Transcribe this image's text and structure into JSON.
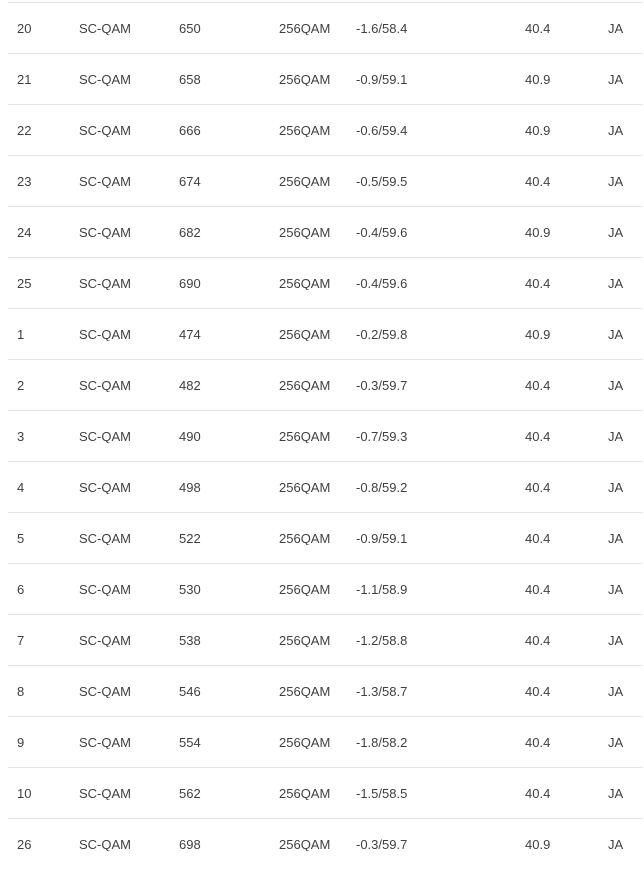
{
  "colors": {
    "text": "#3f3f3f",
    "row_divider": "#e4e4e4",
    "background": "#ffffff"
  },
  "table": {
    "kind": "downstream-channel-status-table",
    "columns": [
      "channel_id",
      "channel_type",
      "frequency",
      "modulation",
      "power_snr",
      "mer",
      "locked"
    ],
    "rows": [
      {
        "channel_id": "20",
        "channel_type": "SC-QAM",
        "frequency": "650",
        "modulation": "256QAM",
        "power_snr": "-1.6/58.4",
        "mer": "40.4",
        "locked": "JA"
      },
      {
        "channel_id": "21",
        "channel_type": "SC-QAM",
        "frequency": "658",
        "modulation": "256QAM",
        "power_snr": "-0.9/59.1",
        "mer": "40.9",
        "locked": "JA"
      },
      {
        "channel_id": "22",
        "channel_type": "SC-QAM",
        "frequency": "666",
        "modulation": "256QAM",
        "power_snr": "-0.6/59.4",
        "mer": "40.9",
        "locked": "JA"
      },
      {
        "channel_id": "23",
        "channel_type": "SC-QAM",
        "frequency": "674",
        "modulation": "256QAM",
        "power_snr": "-0.5/59.5",
        "mer": "40.4",
        "locked": "JA"
      },
      {
        "channel_id": "24",
        "channel_type": "SC-QAM",
        "frequency": "682",
        "modulation": "256QAM",
        "power_snr": "-0.4/59.6",
        "mer": "40.9",
        "locked": "JA"
      },
      {
        "channel_id": "25",
        "channel_type": "SC-QAM",
        "frequency": "690",
        "modulation": "256QAM",
        "power_snr": "-0.4/59.6",
        "mer": "40.4",
        "locked": "JA"
      },
      {
        "channel_id": "1",
        "channel_type": "SC-QAM",
        "frequency": "474",
        "modulation": "256QAM",
        "power_snr": "-0.2/59.8",
        "mer": "40.9",
        "locked": "JA"
      },
      {
        "channel_id": "2",
        "channel_type": "SC-QAM",
        "frequency": "482",
        "modulation": "256QAM",
        "power_snr": "-0.3/59.7",
        "mer": "40.4",
        "locked": "JA"
      },
      {
        "channel_id": "3",
        "channel_type": "SC-QAM",
        "frequency": "490",
        "modulation": "256QAM",
        "power_snr": "-0.7/59.3",
        "mer": "40.4",
        "locked": "JA"
      },
      {
        "channel_id": "4",
        "channel_type": "SC-QAM",
        "frequency": "498",
        "modulation": "256QAM",
        "power_snr": "-0.8/59.2",
        "mer": "40.4",
        "locked": "JA"
      },
      {
        "channel_id": "5",
        "channel_type": "SC-QAM",
        "frequency": "522",
        "modulation": "256QAM",
        "power_snr": "-0.9/59.1",
        "mer": "40.4",
        "locked": "JA"
      },
      {
        "channel_id": "6",
        "channel_type": "SC-QAM",
        "frequency": "530",
        "modulation": "256QAM",
        "power_snr": "-1.1/58.9",
        "mer": "40.4",
        "locked": "JA"
      },
      {
        "channel_id": "7",
        "channel_type": "SC-QAM",
        "frequency": "538",
        "modulation": "256QAM",
        "power_snr": "-1.2/58.8",
        "mer": "40.4",
        "locked": "JA"
      },
      {
        "channel_id": "8",
        "channel_type": "SC-QAM",
        "frequency": "546",
        "modulation": "256QAM",
        "power_snr": "-1.3/58.7",
        "mer": "40.4",
        "locked": "JA"
      },
      {
        "channel_id": "9",
        "channel_type": "SC-QAM",
        "frequency": "554",
        "modulation": "256QAM",
        "power_snr": "-1.8/58.2",
        "mer": "40.4",
        "locked": "JA"
      },
      {
        "channel_id": "10",
        "channel_type": "SC-QAM",
        "frequency": "562",
        "modulation": "256QAM",
        "power_snr": "-1.5/58.5",
        "mer": "40.4",
        "locked": "JA"
      },
      {
        "channel_id": "26",
        "channel_type": "SC-QAM",
        "frequency": "698",
        "modulation": "256QAM",
        "power_snr": "-0.3/59.7",
        "mer": "40.9",
        "locked": "JA"
      }
    ]
  }
}
